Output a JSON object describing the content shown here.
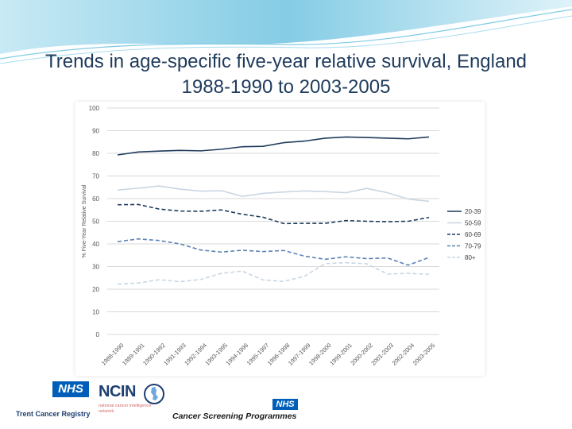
{
  "slide": {
    "title_line1": "Trends in age-specific five-year relative survival, England",
    "title_line2": "1988-1990 to 2003-2005"
  },
  "chart_data": {
    "type": "line",
    "title": "",
    "xlabel": "",
    "ylabel": "% Five-Year Relative Survival",
    "ylim": [
      0,
      100
    ],
    "yticks": [
      0,
      10,
      20,
      30,
      40,
      50,
      60,
      70,
      80,
      90,
      100
    ],
    "grid": true,
    "legend_position": "right",
    "categories": [
      "1988-1990",
      "1989-1991",
      "1990-1992",
      "1991-1993",
      "1992-1994",
      "1993-1995",
      "1994-1996",
      "1995-1997",
      "1996-1998",
      "1997-1999",
      "1998-2000",
      "1999-2001",
      "2000-2002",
      "2001-2003",
      "2002-2004",
      "2003-2005"
    ],
    "series": [
      {
        "name": "20-39",
        "color": "#1f3b5c",
        "dash": "solid",
        "values": [
          79.3,
          80.6,
          81.0,
          81.3,
          81.1,
          81.8,
          82.9,
          83.1,
          84.7,
          85.4,
          86.7,
          87.2,
          87.0,
          86.7,
          86.4,
          87.2
        ]
      },
      {
        "name": "50-59",
        "color": "#c9d6e3",
        "dash": "solid",
        "values": [
          63.8,
          64.6,
          65.6,
          64.2,
          63.3,
          63.5,
          61.0,
          62.3,
          62.9,
          63.4,
          63.1,
          62.6,
          64.5,
          62.6,
          59.8,
          58.8
        ]
      },
      {
        "name": "60-69",
        "color": "#1f3b5c",
        "dash": "dash",
        "values": [
          57.3,
          57.4,
          55.4,
          54.5,
          54.4,
          55.0,
          53.1,
          51.8,
          49.0,
          49.1,
          49.1,
          50.3,
          50.0,
          49.8,
          50.0,
          51.7
        ]
      },
      {
        "name": "70-79",
        "color": "#5b82b5",
        "dash": "dash",
        "values": [
          41.0,
          42.2,
          41.5,
          40.0,
          37.3,
          36.4,
          37.2,
          36.6,
          37.1,
          34.6,
          33.2,
          34.3,
          33.5,
          33.8,
          30.6,
          34.0
        ]
      },
      {
        "name": "80+",
        "color": "#c9d6e3",
        "dash": "dash",
        "values": [
          22.3,
          22.7,
          24.2,
          23.3,
          24.3,
          27.0,
          28.0,
          24.1,
          23.4,
          25.7,
          31.3,
          31.7,
          31.2,
          26.7,
          27.0,
          26.6
        ]
      }
    ]
  },
  "footer": {
    "nhs_badge_1": "NHS",
    "trent_caption": "Trent Cancer Registry",
    "ncin_wordmark": "NCIN",
    "ncin_caption": "national cancer intelligence network",
    "nhs_badge_2": "NHS",
    "screening_caption": "Cancer Screening Programmes"
  },
  "colors": {
    "title": "#1f3b5c",
    "header_wave": "#6fc3e0",
    "nhs_blue": "#005eb8",
    "grid": "#d9d9d9",
    "axis_text": "#595959"
  }
}
